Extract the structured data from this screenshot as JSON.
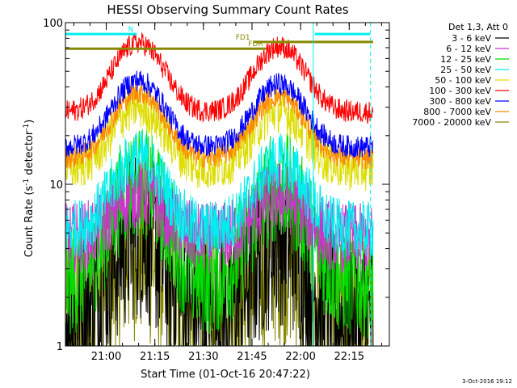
{
  "chart_data": {
    "type": "line",
    "title": "HESSI Observing Summary Count Rates",
    "xlabel": "Start Time (01-Oct-16 20:47:22)",
    "ylabel": "Count Rate (s",
    "ylabel_sup": "-1",
    "ylabel_tail": " detector",
    "ylabel_end": ")",
    "y_scale": "log",
    "ylim": [
      1,
      100
    ],
    "xlim_minutes": [
      0,
      100
    ],
    "x_ticks": [
      {
        "label": "21:00",
        "minutes": 12.6
      },
      {
        "label": "21:15",
        "minutes": 27.6
      },
      {
        "label": "21:30",
        "minutes": 42.6
      },
      {
        "label": "21:45",
        "minutes": 57.6
      },
      {
        "label": "22:00",
        "minutes": 72.6
      },
      {
        "label": "22:15",
        "minutes": 87.6
      }
    ],
    "y_ticks": [
      {
        "label": "1",
        "value": 1
      },
      {
        "label": "10",
        "value": 10
      },
      {
        "label": "100",
        "value": 100
      }
    ],
    "legend": {
      "header": "Det 1,3, Att 0",
      "placement": "right"
    },
    "series": [
      {
        "name": "3 - 6 keV",
        "color": "#000000",
        "base": 1.4,
        "peak": 5.0,
        "noise": 0.55,
        "floor": 1.0
      },
      {
        "name": "6 - 12 keV",
        "color": "#cc33cc",
        "base": 4.6,
        "peak": 8.8,
        "noise": 0.22,
        "floor": 1.0
      },
      {
        "name": "12 - 25 keV",
        "color": "#00dd00",
        "base": 2.5,
        "peak": 10.5,
        "noise": 0.35,
        "floor": 1.0
      },
      {
        "name": "25 - 50 keV",
        "color": "#00eeee",
        "base": 5.2,
        "peak": 14.5,
        "noise": 0.18,
        "floor": 1.0
      },
      {
        "name": "50 - 100 keV",
        "color": "#dddd00",
        "base": 12.5,
        "peak": 30.0,
        "noise": 0.14,
        "floor": 1.0
      },
      {
        "name": "100 - 300 keV",
        "color": "#ff0000",
        "base": 28.0,
        "peak": 75.0,
        "noise": 0.07,
        "floor": 1.0
      },
      {
        "name": "300 - 800 keV",
        "color": "#0000ff",
        "base": 17.0,
        "peak": 44.0,
        "noise": 0.07,
        "floor": 1.0
      },
      {
        "name": "800 - 7000 keV",
        "color": "#ff8800",
        "base": 14.5,
        "peak": 37.0,
        "noise": 0.07,
        "floor": 1.0
      },
      {
        "name": "7000 - 20000 keV",
        "color": "#888800",
        "base": 1.3,
        "peak": 4.2,
        "noise": 0.6,
        "floor": 1.0
      }
    ],
    "peaks_minutes": [
      22.5,
      66.0
    ],
    "peak_width_minutes": 9.5,
    "flags": [
      {
        "label": "N",
        "color": "#00eeee",
        "value": 85,
        "ranges_minutes": [
          [
            0,
            22
          ],
          [
            77,
            94
          ]
        ]
      },
      {
        "label": "FD1",
        "color": "#888800",
        "value": 76,
        "ranges_minutes": [
          [
            58,
            95
          ]
        ]
      },
      {
        "label": "FDR",
        "color": "#888800",
        "value": 69,
        "ranges_minutes": [
          [
            0,
            62
          ]
        ]
      }
    ],
    "markers": [
      {
        "color": "#00eeee",
        "minutes": 76.5,
        "style": "solid"
      },
      {
        "color": "#00eeee",
        "minutes": 94.2,
        "style": "dashed"
      }
    ],
    "timestamp": "3-Oct-2016 19:12"
  }
}
